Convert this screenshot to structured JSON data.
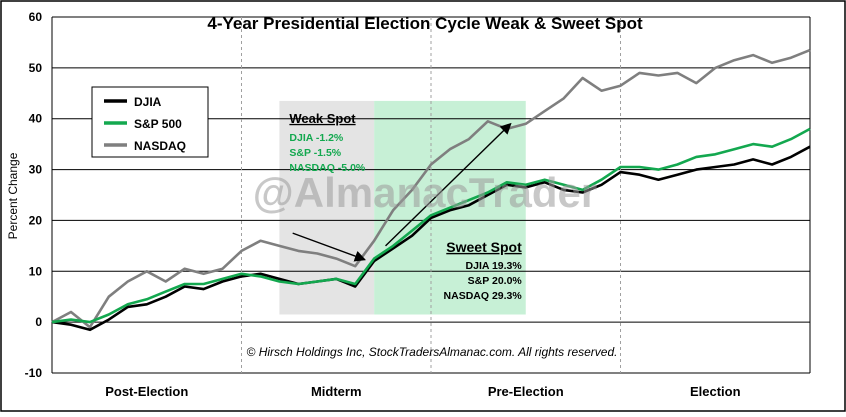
{
  "chart_data": {
    "type": "line",
    "title": "4-Year Presidential Election Cycle Weak & Sweet Spot",
    "ylabel": "Percent Change",
    "xlabel": "",
    "ylim": [
      -10,
      60
    ],
    "yticks": [
      -10,
      0,
      10,
      20,
      30,
      40,
      50,
      60
    ],
    "grid": true,
    "phases": [
      "Post-Election",
      "Midterm",
      "Pre-Election",
      "Election"
    ],
    "legend": {
      "placement": "top-left",
      "entries": [
        {
          "name": "DJIA",
          "color": "#000000"
        },
        {
          "name": "S&P 500",
          "color": "#13a84f"
        },
        {
          "name": "NASDAQ",
          "color": "#7f7f7f"
        }
      ]
    },
    "watermark": "@AlmanacTrader",
    "copyright": "© Hirsch Holdings Inc, StockTradersAlmanac.com. All rights reserved.",
    "x_unit": "year of cycle (0-4)",
    "series": [
      {
        "name": "DJIA",
        "color": "#000000",
        "x": [
          0,
          0.1,
          0.2,
          0.3,
          0.4,
          0.5,
          0.6,
          0.7,
          0.8,
          0.9,
          1.0,
          1.1,
          1.2,
          1.3,
          1.4,
          1.5,
          1.6,
          1.7,
          1.8,
          1.9,
          2.0,
          2.1,
          2.2,
          2.3,
          2.4,
          2.5,
          2.6,
          2.7,
          2.8,
          2.9,
          3.0,
          3.1,
          3.2,
          3.3,
          3.4,
          3.5,
          3.6,
          3.7,
          3.8,
          3.9,
          4.0
        ],
        "values": [
          0,
          -0.5,
          -1.5,
          0.5,
          3.0,
          3.5,
          5.0,
          7.0,
          6.5,
          8.0,
          9.0,
          9.5,
          8.5,
          7.5,
          8.0,
          8.5,
          7.0,
          12.0,
          14.5,
          17.0,
          20.5,
          22.0,
          23.0,
          25.0,
          27.0,
          26.5,
          27.5,
          26.0,
          25.5,
          27.0,
          29.5,
          29.0,
          28.0,
          29.0,
          30.0,
          30.5,
          31.0,
          32.0,
          31.0,
          32.5,
          34.5
        ]
      },
      {
        "name": "S&P 500",
        "color": "#13a84f",
        "x": [
          0,
          0.1,
          0.2,
          0.3,
          0.4,
          0.5,
          0.6,
          0.7,
          0.8,
          0.9,
          1.0,
          1.1,
          1.2,
          1.3,
          1.4,
          1.5,
          1.6,
          1.7,
          1.8,
          1.9,
          2.0,
          2.1,
          2.2,
          2.3,
          2.4,
          2.5,
          2.6,
          2.7,
          2.8,
          2.9,
          3.0,
          3.1,
          3.2,
          3.3,
          3.4,
          3.5,
          3.6,
          3.7,
          3.8,
          3.9,
          4.0
        ],
        "values": [
          0,
          0.5,
          0,
          1.5,
          3.5,
          4.5,
          6.0,
          7.5,
          7.5,
          8.5,
          9.5,
          9.0,
          8.0,
          7.5,
          8.0,
          8.5,
          7.5,
          12.5,
          15.0,
          18.0,
          21.0,
          22.5,
          24.0,
          25.5,
          27.5,
          27.0,
          28.0,
          27.0,
          26.0,
          28.0,
          30.5,
          30.5,
          30.0,
          31.0,
          32.5,
          33.0,
          34.0,
          35.0,
          34.5,
          36.0,
          38.0
        ]
      },
      {
        "name": "NASDAQ",
        "color": "#7f7f7f",
        "x": [
          0,
          0.1,
          0.2,
          0.3,
          0.4,
          0.5,
          0.6,
          0.7,
          0.8,
          0.9,
          1.0,
          1.1,
          1.2,
          1.3,
          1.4,
          1.5,
          1.6,
          1.7,
          1.8,
          1.9,
          2.0,
          2.1,
          2.2,
          2.3,
          2.4,
          2.5,
          2.6,
          2.7,
          2.8,
          2.9,
          3.0,
          3.1,
          3.2,
          3.3,
          3.4,
          3.5,
          3.6,
          3.7,
          3.8,
          3.9,
          4.0
        ],
        "values": [
          0,
          2.0,
          -1.0,
          5.0,
          8.0,
          10.0,
          8.0,
          10.5,
          9.5,
          10.5,
          14.0,
          16.0,
          15.0,
          14.0,
          13.5,
          12.5,
          11.0,
          16.0,
          22.0,
          26.0,
          31.0,
          34.0,
          36.0,
          39.5,
          38.0,
          39.0,
          41.5,
          44.0,
          48.0,
          45.5,
          46.5,
          49.0,
          48.5,
          49.0,
          47.0,
          50.0,
          51.5,
          52.5,
          51.0,
          52.0,
          53.5
        ]
      }
    ],
    "annotations": {
      "weak_spot": {
        "title": "Weak Spot",
        "x_range": [
          1.2,
          1.7
        ],
        "y_range": [
          1.5,
          43.5
        ],
        "lines": [
          {
            "text": "DJIA -1.2%"
          },
          {
            "text": "S&P -1.5%"
          },
          {
            "text": "NASDAQ -5.0%"
          }
        ]
      },
      "sweet_spot": {
        "title": "Sweet Spot",
        "x_range": [
          1.7,
          2.5
        ],
        "y_range": [
          1.5,
          43.5
        ],
        "lines": [
          {
            "text": "DJIA 19.3%"
          },
          {
            "text": "S&P 20.0%"
          },
          {
            "text": "NASDAQ 29.3%"
          }
        ]
      },
      "arrows": [
        {
          "from": [
            1.27,
            17.5
          ],
          "to": [
            1.65,
            12.3
          ]
        },
        {
          "from": [
            1.76,
            15.0
          ],
          "to": [
            2.42,
            39.0
          ]
        }
      ]
    }
  }
}
